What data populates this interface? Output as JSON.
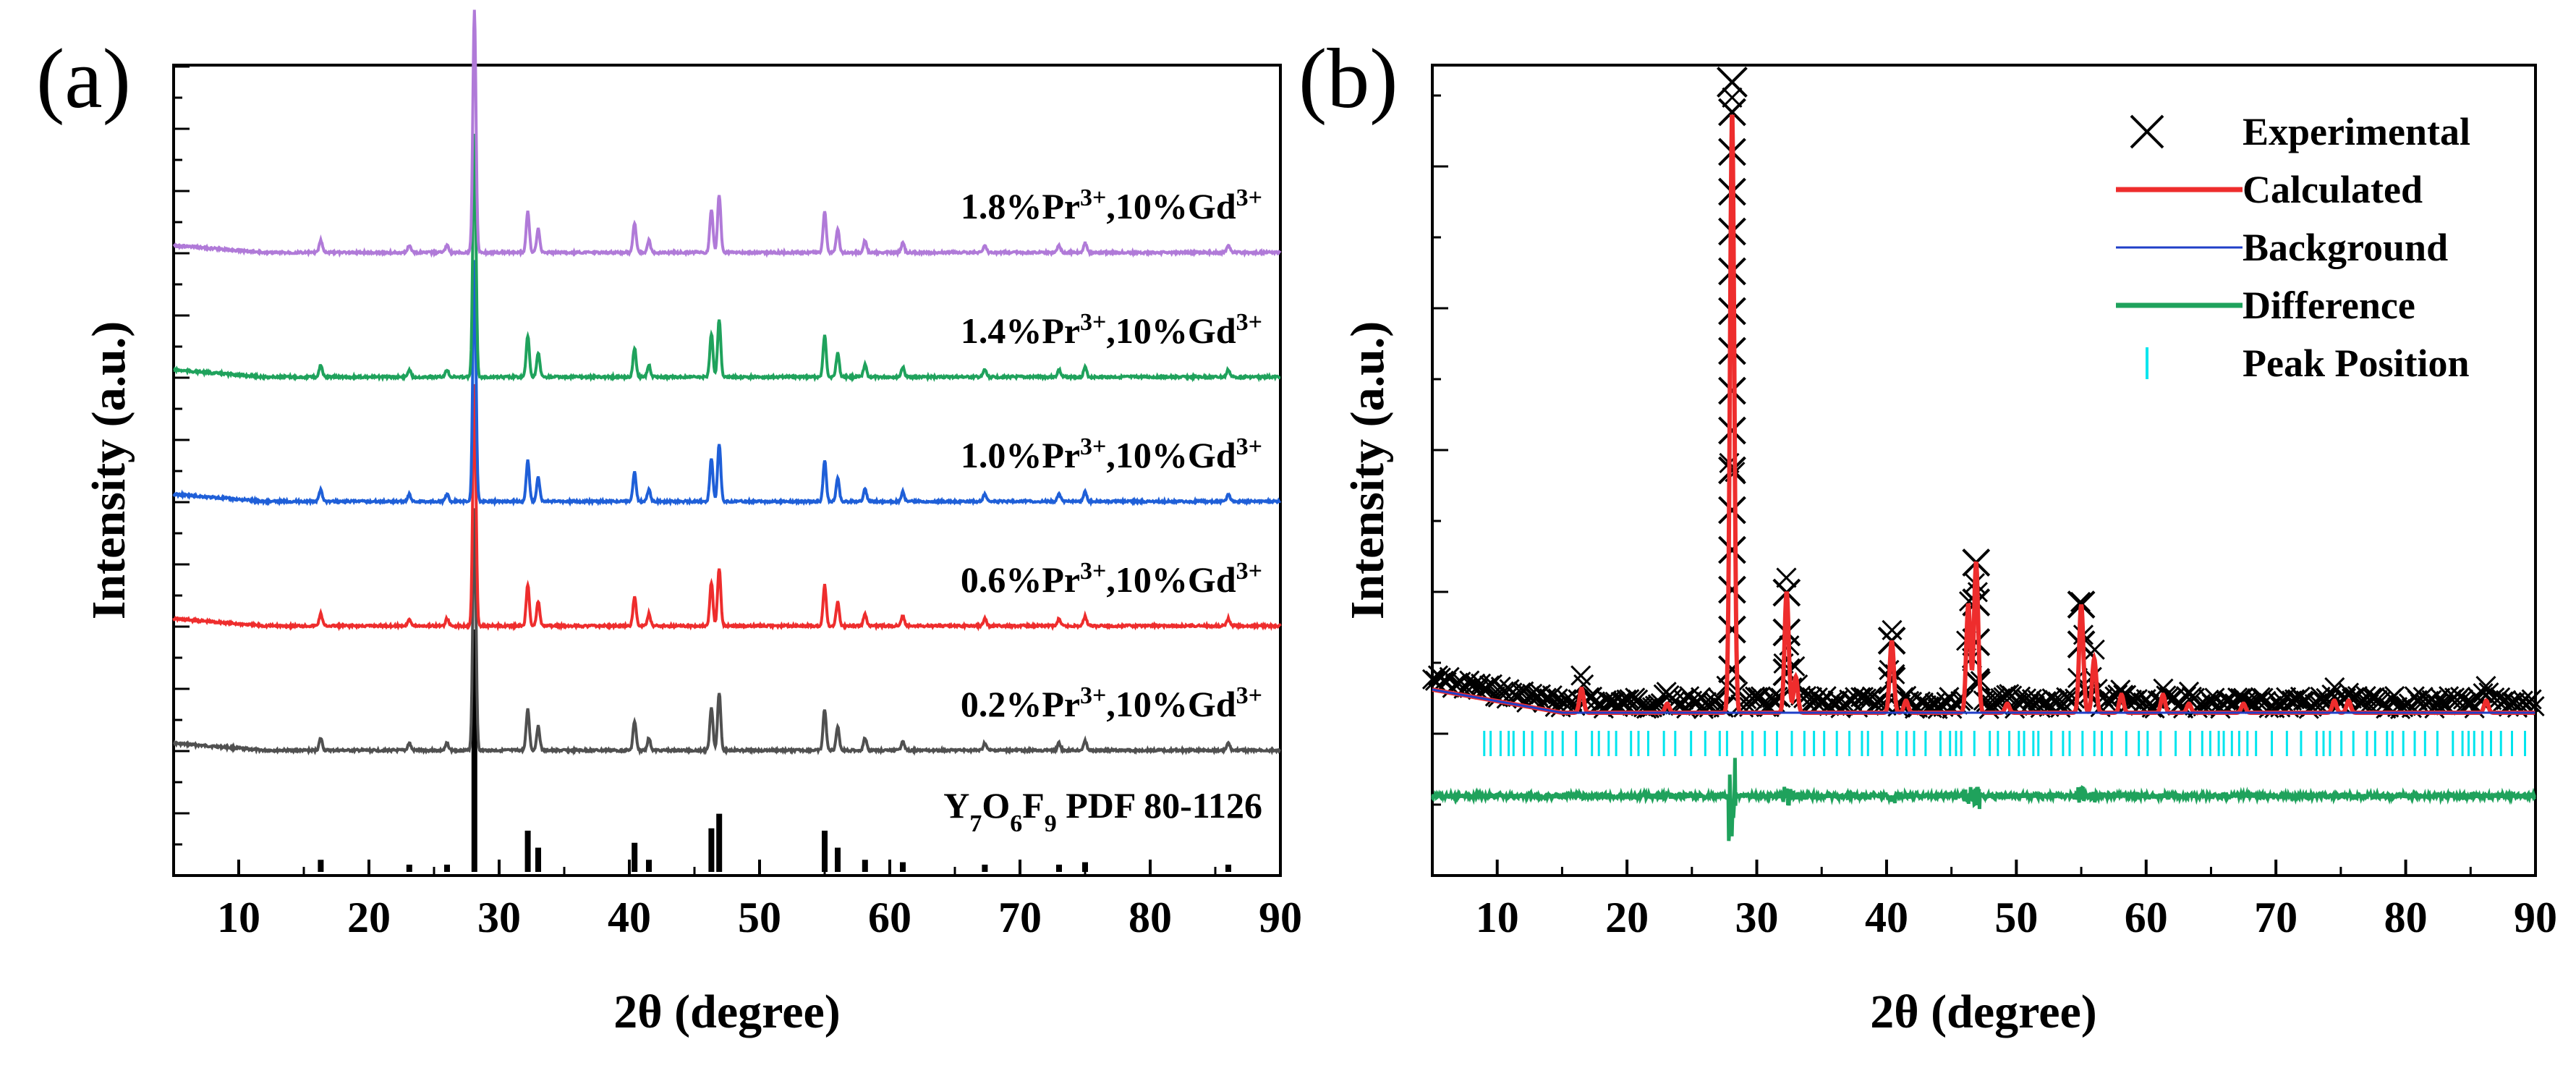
{
  "chart_data": [
    {
      "panel": "(a)",
      "type": "line",
      "xlabel": "2θ (degree)",
      "ylabel": "Intensity (a.u.)",
      "xlim": [
        5,
        90
      ],
      "xticks": [
        "10",
        "20",
        "30",
        "40",
        "50",
        "60",
        "70",
        "80",
        "90"
      ],
      "yticks_labeled": false,
      "peak_positions": [
        16.3,
        23.1,
        26.0,
        28.1,
        32.2,
        33.0,
        40.4,
        41.5,
        46.3,
        46.9,
        55.0,
        56.0,
        58.1,
        61.0,
        67.3,
        73.0,
        75.0,
        86.0
      ],
      "reference": {
        "name": "Y",
        "name_parts": [
          "Y",
          "7",
          "O",
          "6",
          "F",
          "9",
          " PDF 80-1126"
        ],
        "type": "stick",
        "color": "#000000",
        "peaks": [
          {
            "x": 16.3,
            "h": 0.05
          },
          {
            "x": 23.1,
            "h": 0.03
          },
          {
            "x": 26.0,
            "h": 0.03
          },
          {
            "x": 28.1,
            "h": 1.0
          },
          {
            "x": 32.2,
            "h": 0.17
          },
          {
            "x": 33.0,
            "h": 0.1
          },
          {
            "x": 40.4,
            "h": 0.12
          },
          {
            "x": 41.5,
            "h": 0.05
          },
          {
            "x": 46.3,
            "h": 0.18
          },
          {
            "x": 46.9,
            "h": 0.24
          },
          {
            "x": 55.0,
            "h": 0.17
          },
          {
            "x": 56.0,
            "h": 0.1
          },
          {
            "x": 58.1,
            "h": 0.05
          },
          {
            "x": 61.0,
            "h": 0.04
          },
          {
            "x": 67.3,
            "h": 0.03
          },
          {
            "x": 73.0,
            "h": 0.03
          },
          {
            "x": 75.0,
            "h": 0.04
          },
          {
            "x": 86.0,
            "h": 0.03
          }
        ]
      },
      "series": [
        {
          "name": "0.2%Pr3+,10%Gd3+",
          "label_parts": [
            "0.2%Pr",
            "3+",
            ",10%Gd",
            "3+"
          ],
          "color": "#505050",
          "offset": 0
        },
        {
          "name": "0.6%Pr3+,10%Gd3+",
          "label_parts": [
            "0.6%Pr",
            "3+",
            ",10%Gd",
            "3+"
          ],
          "color": "#ee2d2d",
          "offset": 1
        },
        {
          "name": "1.0%Pr3+,10%Gd3+",
          "label_parts": [
            "1.0%Pr",
            "3+",
            ",10%Gd",
            "3+"
          ],
          "color": "#1f5fd8",
          "offset": 2
        },
        {
          "name": "1.4%Pr3+,10%Gd3+",
          "label_parts": [
            "1.4%Pr",
            "3+",
            ",10%Gd",
            "3+"
          ],
          "color": "#1fa25c",
          "offset": 3
        },
        {
          "name": "1.8%Pr3+,10%Gd3+",
          "label_parts": [
            "1.8%Pr",
            "3+",
            ",10%Gd",
            "3+"
          ],
          "color": "#b07ad8",
          "offset": 4
        }
      ]
    },
    {
      "panel": "(b)",
      "type": "line",
      "xlabel": "2θ (degree)",
      "ylabel": "Intensity (a.u.)",
      "xlim": [
        5,
        90
      ],
      "xticks": [
        "10",
        "20",
        "30",
        "40",
        "50",
        "60",
        "70",
        "80",
        "90"
      ],
      "yticks_labeled": false,
      "legend": [
        {
          "label": "Experimental",
          "marker": "x",
          "color": "#000000"
        },
        {
          "label": "Calculated",
          "marker": "line",
          "color": "#ee2d2d"
        },
        {
          "label": "Background",
          "marker": "line",
          "color": "#1f3fc8"
        },
        {
          "label": "Difference",
          "marker": "line",
          "color": "#1fa25c"
        },
        {
          "label": "Peak Position",
          "marker": "tick",
          "color": "#00e5ee"
        }
      ],
      "legend_position": "top-right",
      "experimental_peak_tops": [
        {
          "x": 28.1,
          "y": 1.0
        },
        {
          "x": 32.3,
          "y": 0.2
        },
        {
          "x": 40.4,
          "y": 0.12
        },
        {
          "x": 46.9,
          "y": 0.25
        },
        {
          "x": 55.0,
          "y": 0.18
        }
      ]
    }
  ]
}
